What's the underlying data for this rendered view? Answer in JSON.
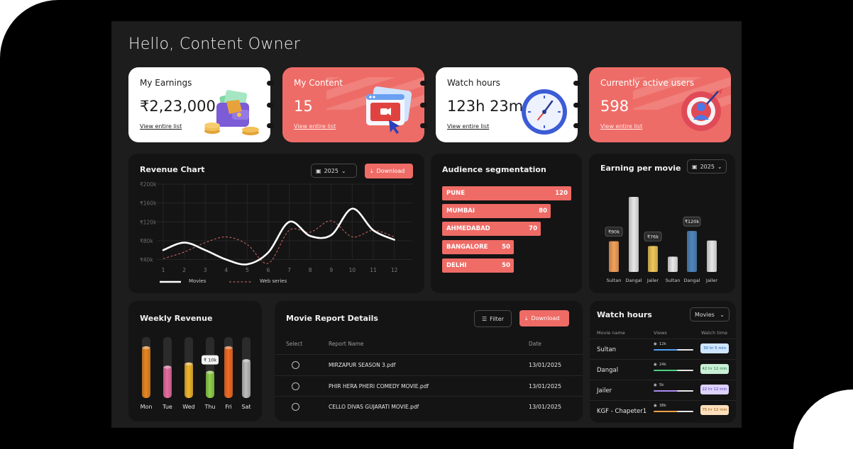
{
  "greeting": "Hello, Content Owner",
  "stats": [
    {
      "title": "My Earnings",
      "value": "₹2,23,000",
      "link": "View entire list",
      "icon": "wallet-icon"
    },
    {
      "title": "My Content",
      "value": "15",
      "link": "View entire list",
      "icon": "video-content-icon"
    },
    {
      "title": "Watch hours",
      "value": "123h 23m",
      "link": "View entire list",
      "icon": "clock-icon"
    },
    {
      "title": "Currently active users",
      "value": "598",
      "link": "View entire list",
      "icon": "target-user-icon"
    }
  ],
  "revenue_chart": {
    "title": "Revenue Chart",
    "year": "2025",
    "download": "Download",
    "y_ticks": [
      "₹200k",
      "₹160k",
      "₹120k",
      "₹80k",
      "₹40k"
    ],
    "legend": [
      "Movies",
      "Web series"
    ]
  },
  "audience": {
    "title": "Audience segmentation",
    "segments": [
      {
        "city": "PUNE",
        "value": "120"
      },
      {
        "city": "MUMBAI",
        "value": "80"
      },
      {
        "city": "AHMEDABAD",
        "value": "70"
      },
      {
        "city": "BANGALORE",
        "value": "50"
      },
      {
        "city": "DELHI",
        "value": "50"
      }
    ]
  },
  "earning_per_movie": {
    "title": "Earning per movie",
    "year": "2025"
  },
  "weekly_revenue": {
    "title": "Weekly Revenue",
    "tooltip": "₹ 10k"
  },
  "movie_report": {
    "title": "Movie Report Details",
    "filter": "Filter",
    "download": "Download",
    "columns": [
      "Select",
      "Report Name",
      "Date"
    ],
    "rows": [
      {
        "name": "MIRZAPUR SEASON 3.pdf",
        "date": "13/01/2025"
      },
      {
        "name": "PHIR HERA PHERI COMEDY MOVIE.pdf",
        "date": "13/01/2025"
      },
      {
        "name": "CELLO DIVAS GUJARATI MOVIE.pdf",
        "date": "13/01/2025"
      }
    ]
  },
  "watch_hours": {
    "title": "Watch hours",
    "dropdown": "Movies",
    "columns": [
      "Movie name",
      "Views",
      "Watch time"
    ],
    "rows": [
      {
        "name": "Sultan",
        "views": "12k",
        "time": "30 hr 5 min",
        "color": "#4fa3f7",
        "bg": "#cfe6ff",
        "fg": "#1f5f9e"
      },
      {
        "name": "Dangal",
        "views": "24k",
        "time": "42 hr 12 min",
        "color": "#4fcf82",
        "bg": "#c9f0d6",
        "fg": "#1f7a43"
      },
      {
        "name": "Jailer",
        "views": "5k",
        "time": "22 hr 12 min",
        "color": "#a98ef2",
        "bg": "#ddd2fb",
        "fg": "#5b3fb0"
      },
      {
        "name": "KGF - Chapeter1",
        "views": "38k",
        "time": "75 hr 12 min",
        "color": "#f3a24a",
        "bg": "#fde0bb",
        "fg": "#9a5a12"
      }
    ]
  },
  "chart_data": [
    {
      "type": "line",
      "title": "Revenue Chart",
      "x": [
        1,
        2,
        3,
        4,
        5,
        6,
        7,
        8,
        9,
        10,
        11,
        12
      ],
      "ylim": [
        0,
        200
      ],
      "y_ticks": [
        "₹200k",
        "₹160k",
        "₹120k",
        "₹80k",
        "₹40k"
      ],
      "series": [
        {
          "name": "Movies",
          "values": [
            60,
            76,
            60,
            40,
            30,
            55,
            120,
            90,
            92,
            148,
            102,
            82
          ]
        },
        {
          "name": "Web series",
          "values": [
            42,
            56,
            76,
            88,
            72,
            32,
            102,
            98,
            122,
            88,
            102,
            88
          ]
        }
      ]
    },
    {
      "type": "bar",
      "title": "Earning per movie",
      "categories": [
        "Sultan",
        "Dangal",
        "Jailer",
        "Sultan",
        "Dangal",
        "Jailer"
      ],
      "values": [
        90,
        220,
        76,
        45,
        120,
        92
      ],
      "labels": [
        "₹90k",
        "",
        "₹76k",
        "",
        "₹120k",
        ""
      ],
      "colors": [
        "#f3a15a",
        "#e8e8e8",
        "#f0c859",
        "#e8e8e8",
        "#4f86bd",
        "#e8e8e8"
      ]
    },
    {
      "type": "bar",
      "title": "Weekly Revenue",
      "categories": [
        "Mon",
        "Tue",
        "Wed",
        "Thu",
        "Fri",
        "Sat"
      ],
      "values": [
        80,
        50,
        55,
        42,
        80,
        60
      ],
      "highlight": "Thu",
      "highlight_label": "₹ 10k",
      "colors": [
        "#e8871e",
        "#e86ca0",
        "#f1b62c",
        "#8fd24a",
        "#f26a22",
        "#bdbdbd"
      ]
    }
  ]
}
